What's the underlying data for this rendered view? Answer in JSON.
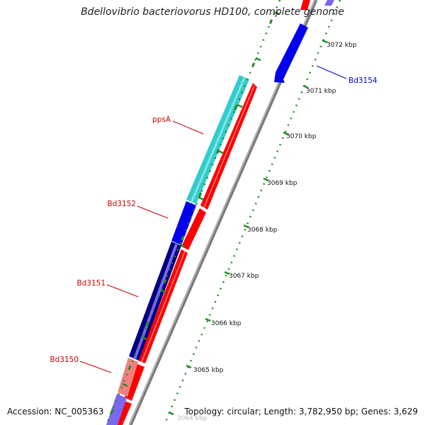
{
  "title": "Bdellovibrio bacteriovorus HD100, complete genome",
  "footer": {
    "accession": "Accession: NC_005363",
    "summary": "Topology: circular; Length: 3,782,950 bp; Genes: 3,629"
  },
  "scale": {
    "ticks": [
      {
        "label": "3072 kbp"
      },
      {
        "label": "3071 kbp"
      },
      {
        "label": "3070 kbp"
      },
      {
        "label": "3069 kbp"
      },
      {
        "label": "3068 kbp"
      },
      {
        "label": "3067 kbp"
      },
      {
        "label": "3066 kbp"
      },
      {
        "label": "3065 kbp"
      },
      {
        "label": "3064 kbp"
      }
    ]
  },
  "genes": [
    {
      "label": "Bd3154",
      "color": "#0000cc"
    },
    {
      "label": "ppsA",
      "color": "#cc0000"
    },
    {
      "label": "Bd3152",
      "color": "#cc0000"
    },
    {
      "label": "Bd3151",
      "color": "#cc0000"
    },
    {
      "label": "Bd3150",
      "color": "#cc0000"
    }
  ],
  "colors": {
    "backbone": "#888888",
    "cds_forward": "#ff0000",
    "tick_marks": "#228b22",
    "ppsA_segment": "#33cccc",
    "blue_segment": "#0000ee",
    "navy_segment": "#000080",
    "purple_segment": "#7b68ee",
    "pink_segment": "#f08080"
  }
}
